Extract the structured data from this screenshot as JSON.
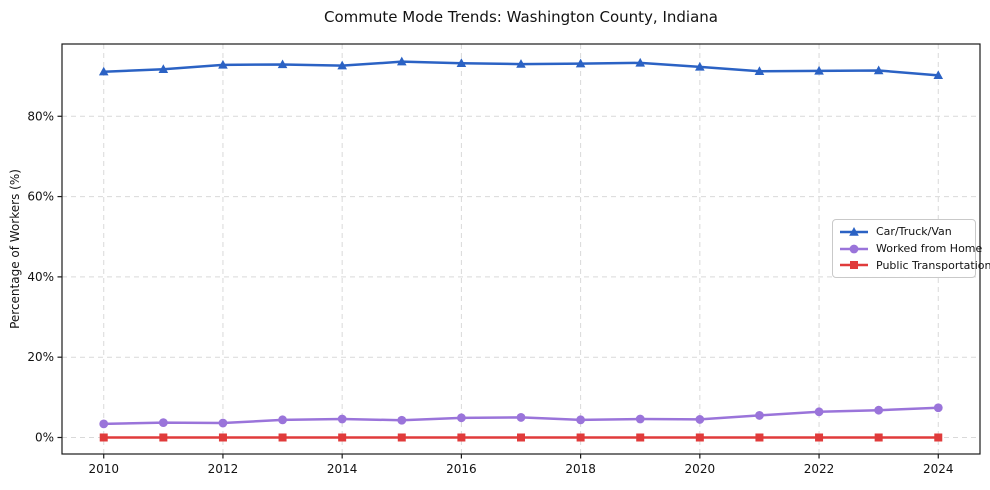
{
  "chart_data": {
    "type": "line",
    "title": "Commute Mode Trends: Washington County, Indiana",
    "xlabel": "",
    "ylabel": "Percentage of Workers (%)",
    "x": [
      2010,
      2011,
      2012,
      2013,
      2014,
      2015,
      2016,
      2017,
      2018,
      2019,
      2020,
      2021,
      2022,
      2023,
      2024
    ],
    "x_ticks": [
      2010,
      2012,
      2014,
      2016,
      2018,
      2020,
      2022,
      2024
    ],
    "x_tick_labels": [
      "2010",
      "2012",
      "2014",
      "2016",
      "2018",
      "2020",
      "2022",
      "2024"
    ],
    "y_ticks": [
      0,
      20,
      40,
      60,
      80
    ],
    "y_tick_labels": [
      "0%",
      "20%",
      "40%",
      "60%",
      "80%"
    ],
    "xlim": [
      2009.3,
      2024.7
    ],
    "ylim": [
      -4.11,
      98.0
    ],
    "grid": true,
    "grid_style": "dashed",
    "grid_color": "#d9d9d9",
    "axis_color": "#1a1a1a",
    "legend_position": "center-right",
    "series": [
      {
        "name": "Car/Truck/Van",
        "color": "#2b62c4",
        "marker": "triangle",
        "values": [
          91.1,
          91.7,
          92.8,
          92.9,
          92.6,
          93.6,
          93.2,
          93.0,
          93.1,
          93.3,
          92.3,
          91.2,
          91.3,
          91.4,
          90.2
        ]
      },
      {
        "name": "Worked from Home",
        "color": "#9a74da",
        "marker": "circle",
        "values": [
          3.4,
          3.7,
          3.6,
          4.4,
          4.6,
          4.3,
          4.9,
          5.0,
          4.4,
          4.6,
          4.5,
          5.5,
          6.4,
          6.8,
          7.4
        ]
      },
      {
        "name": "Public Transportation",
        "color": "#e03b3b",
        "marker": "square",
        "values": [
          0.0,
          0.0,
          0.0,
          0.0,
          0.0,
          0.0,
          0.0,
          0.0,
          0.0,
          0.0,
          0.0,
          0.0,
          0.0,
          0.0,
          0.0
        ]
      }
    ]
  }
}
